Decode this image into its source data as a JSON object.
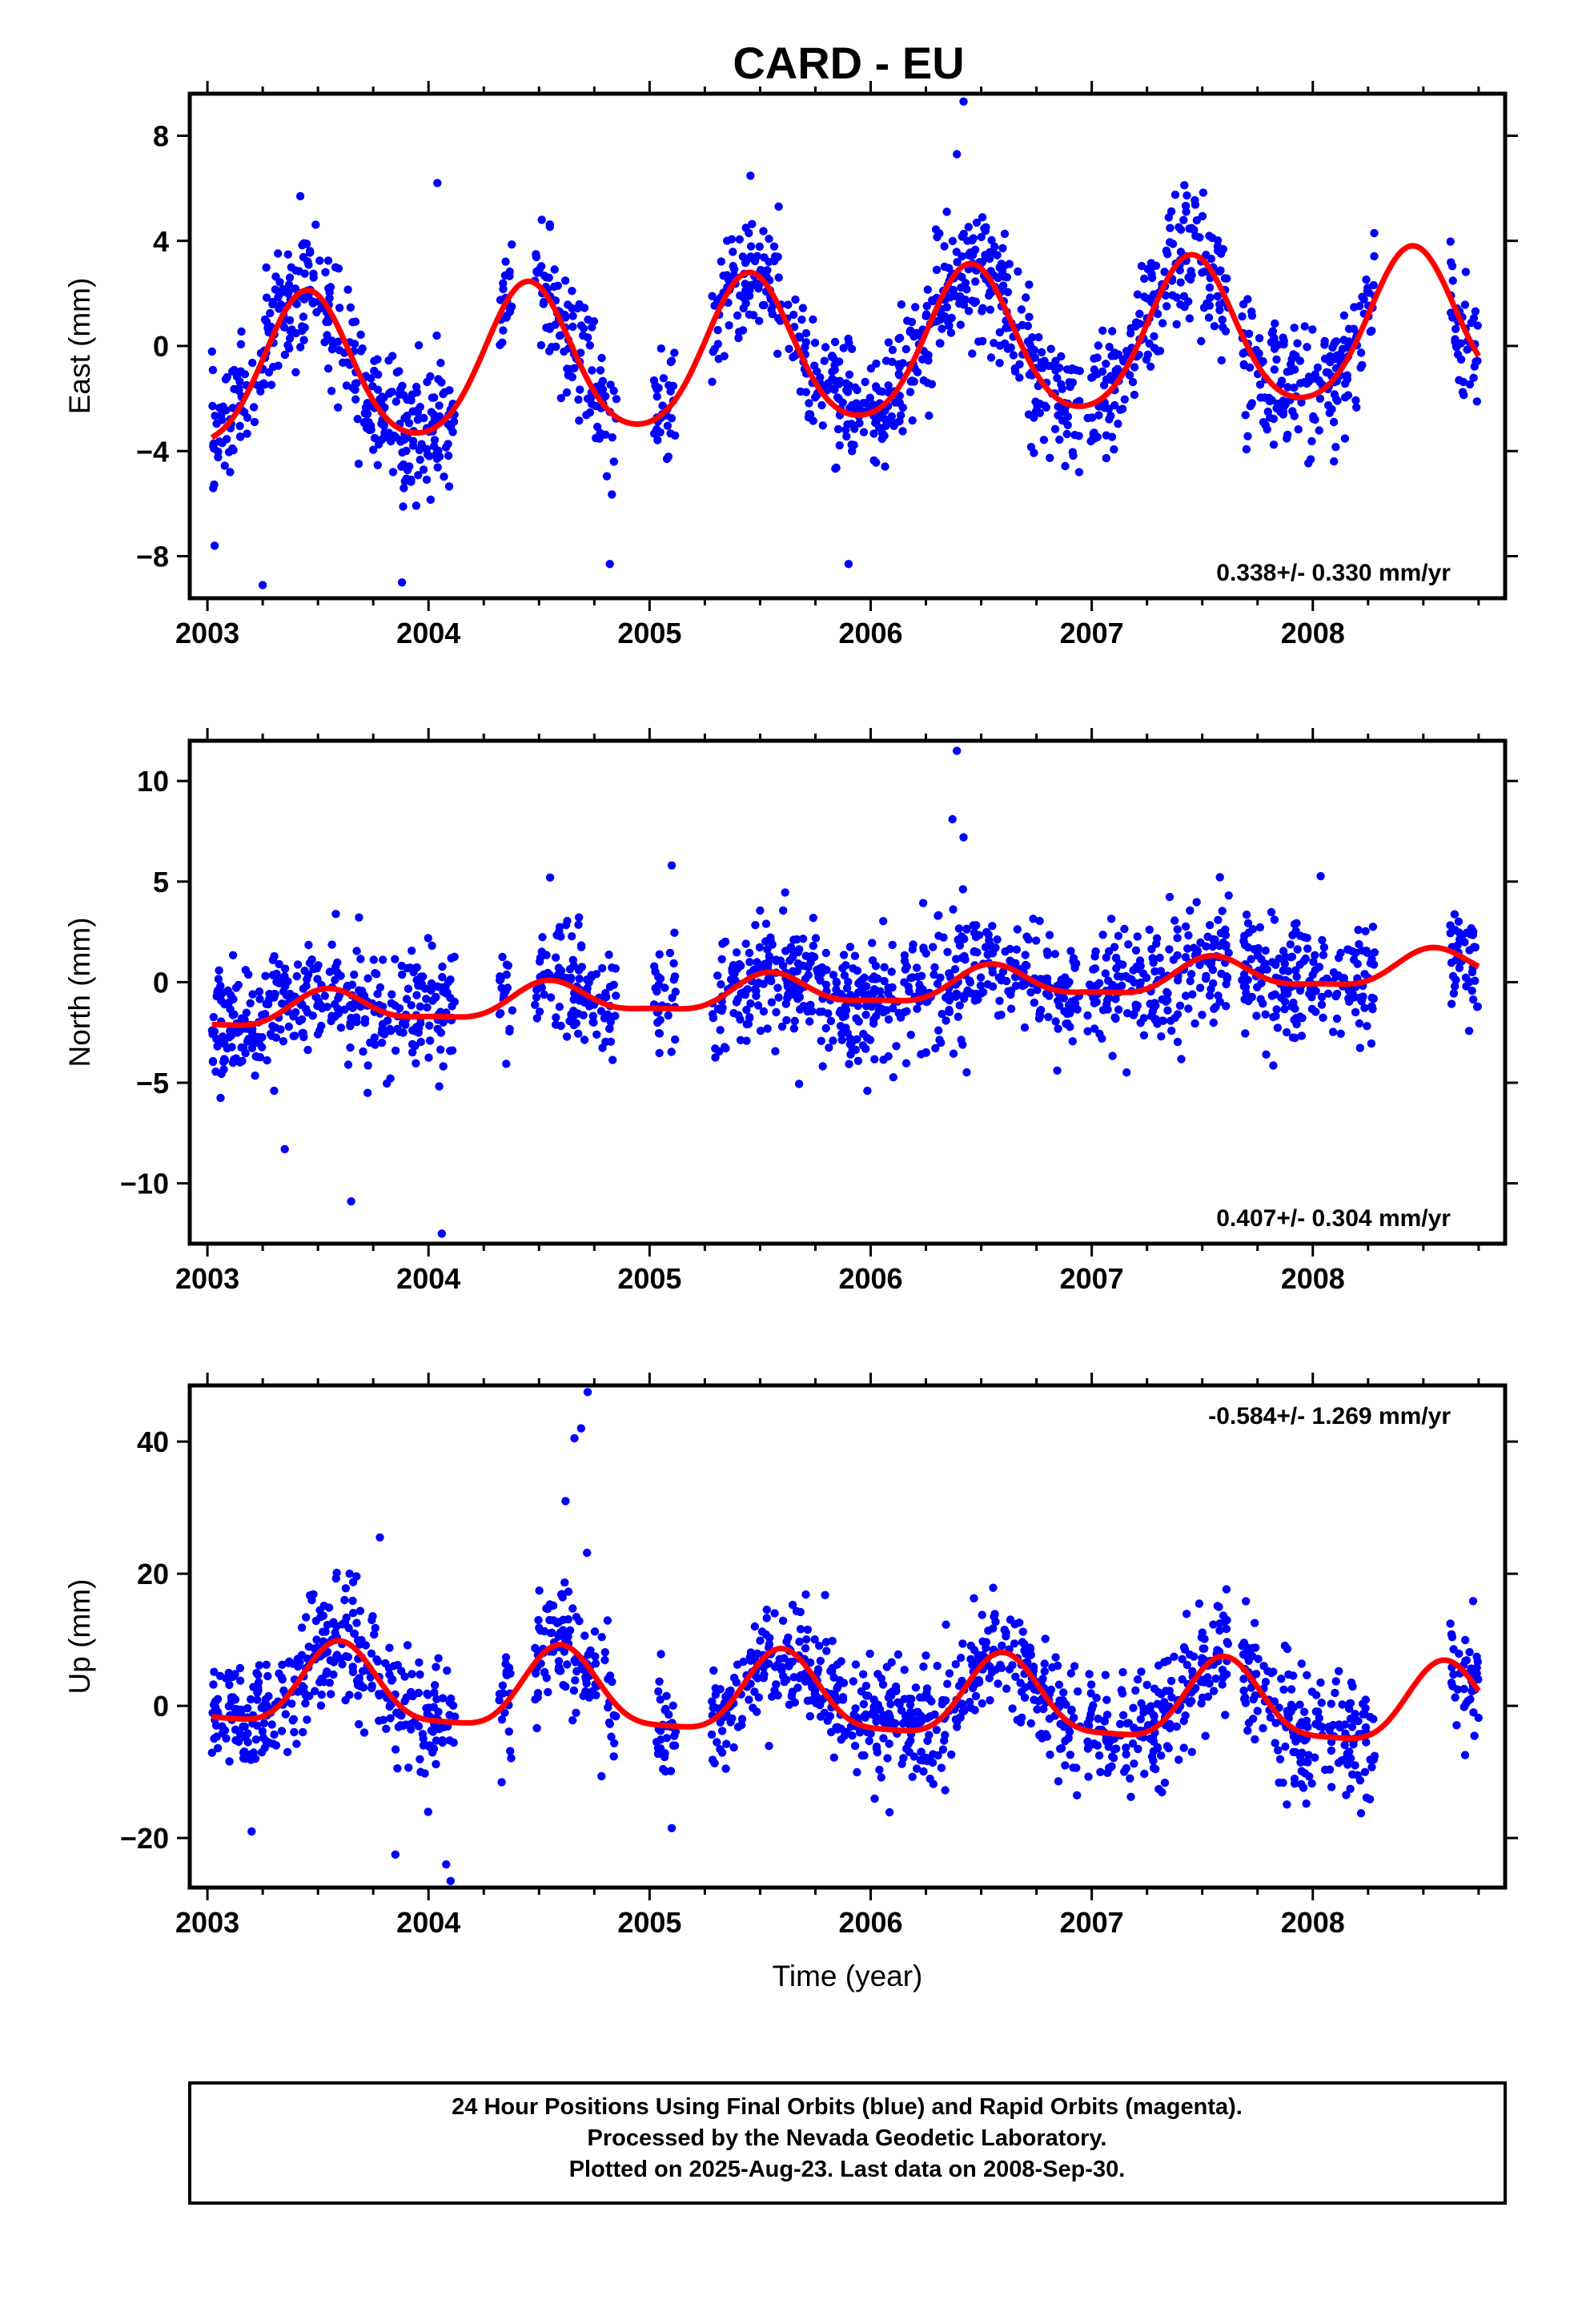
{
  "title": "CARD - EU",
  "footer": {
    "lines": [
      "24 Hour Positions Using Final Orbits (blue) and Rapid Orbits (magenta).",
      "Processed by the Nevada Geodetic Laboratory.",
      "Plotted on 2025-Aug-23. Last data on 2008-Sep-30."
    ]
  },
  "colors": {
    "final_orbits": "#0000ff",
    "rapid_orbits": "#ff00ff",
    "model": "#ff0000",
    "frame": "#000000"
  },
  "chart_data": [
    {
      "type": "scatter",
      "panel": "east",
      "ylabel": "East (mm)",
      "xlabel": "",
      "xlim": [
        2002.92,
        2008.87
      ],
      "ylim": [
        -9.6,
        9.6
      ],
      "xticks": [
        2003,
        2004,
        2005,
        2006,
        2007,
        2008
      ],
      "yticks": [
        -8,
        -4,
        0,
        4,
        8
      ],
      "rate_text": "0.338+/- 0.330 mm/yr",
      "model": {
        "offset": -0.2,
        "rate": 0.338,
        "ref_year": 2005.9,
        "annual_amp": 2.8,
        "annual_peak": 2003.45,
        "semiannual_amp": 0.35,
        "semiannual_phase": 0.0
      },
      "data_spans": [
        [
          2003.02,
          2004.12
        ],
        [
          2004.32,
          2004.38
        ],
        [
          2004.48,
          2004.85
        ],
        [
          2005.02,
          2005.12
        ],
        [
          2005.28,
          2006.95
        ],
        [
          2006.98,
          2007.62
        ],
        [
          2007.68,
          2008.28
        ],
        [
          2008.62,
          2008.75
        ]
      ],
      "scatter_sigma": 1.2,
      "outliers": [
        [
          2003.25,
          -9.1
        ],
        [
          2003.88,
          -9.0
        ],
        [
          2004.04,
          6.2
        ],
        [
          2004.82,
          -8.3
        ],
        [
          2005.9,
          -8.3
        ],
        [
          2006.42,
          9.3
        ],
        [
          2006.39,
          7.3
        ],
        [
          2003.42,
          5.7
        ]
      ]
    },
    {
      "type": "scatter",
      "panel": "north",
      "ylabel": "North (mm)",
      "xlabel": "",
      "xlim": [
        2002.92,
        2008.87
      ],
      "ylim": [
        -13.0,
        12.0
      ],
      "xticks": [
        2003,
        2004,
        2005,
        2006,
        2007,
        2008
      ],
      "yticks": [
        -10,
        -5,
        0,
        5,
        10
      ],
      "rate_text": "0.407+/- 0.304 mm/yr",
      "model": {
        "offset": -0.4,
        "rate": 0.407,
        "ref_year": 2005.9,
        "annual_amp": 0.8,
        "annual_peak": 2003.55,
        "semiannual_amp": 0.25,
        "semiannual_phase": 0.2
      },
      "data_spans": [
        [
          2003.02,
          2004.12
        ],
        [
          2004.32,
          2004.38
        ],
        [
          2004.48,
          2004.85
        ],
        [
          2005.02,
          2005.12
        ],
        [
          2005.28,
          2006.95
        ],
        [
          2006.98,
          2007.62
        ],
        [
          2007.68,
          2008.28
        ],
        [
          2008.62,
          2008.75
        ]
      ],
      "scatter_sigma": 1.5,
      "outliers": [
        [
          2003.65,
          -10.9
        ],
        [
          2004.06,
          -12.5
        ],
        [
          2006.39,
          11.5
        ],
        [
          2006.37,
          8.1
        ],
        [
          2006.42,
          7.2
        ],
        [
          2004.55,
          5.2
        ],
        [
          2005.1,
          5.8
        ],
        [
          2003.35,
          -8.3
        ]
      ]
    },
    {
      "type": "scatter",
      "panel": "up",
      "ylabel": "Up (mm)",
      "xlabel": "Time (year)",
      "xlim": [
        2002.92,
        2008.87
      ],
      "ylim": [
        -27.5,
        48.5
      ],
      "xticks": [
        2003,
        2004,
        2005,
        2006,
        2007,
        2008
      ],
      "yticks": [
        -20,
        0,
        20,
        40
      ],
      "rate_text": "-0.584+/- 1.269 mm/yr",
      "model": {
        "offset": 1.0,
        "rate": -0.584,
        "ref_year": 2005.9,
        "annual_amp": 6.0,
        "annual_peak": 2003.6,
        "semiannual_amp": 1.5,
        "semiannual_phase": 0.1
      },
      "data_spans": [
        [
          2003.02,
          2004.12
        ],
        [
          2004.32,
          2004.38
        ],
        [
          2004.48,
          2004.85
        ],
        [
          2005.02,
          2005.12
        ],
        [
          2005.28,
          2006.95
        ],
        [
          2006.98,
          2007.62
        ],
        [
          2007.68,
          2008.28
        ],
        [
          2008.62,
          2008.75
        ]
      ],
      "scatter_sigma": 4.5,
      "outliers": [
        [
          2004.72,
          47.5
        ],
        [
          2004.69,
          42.0
        ],
        [
          2004.66,
          40.5
        ],
        [
          2004.62,
          31.0
        ],
        [
          2003.78,
          25.5
        ],
        [
          2004.1,
          -26.5
        ],
        [
          2004.08,
          -24.0
        ],
        [
          2003.2,
          -19.0
        ],
        [
          2005.1,
          -18.5
        ],
        [
          2003.85,
          -22.5
        ]
      ]
    }
  ]
}
